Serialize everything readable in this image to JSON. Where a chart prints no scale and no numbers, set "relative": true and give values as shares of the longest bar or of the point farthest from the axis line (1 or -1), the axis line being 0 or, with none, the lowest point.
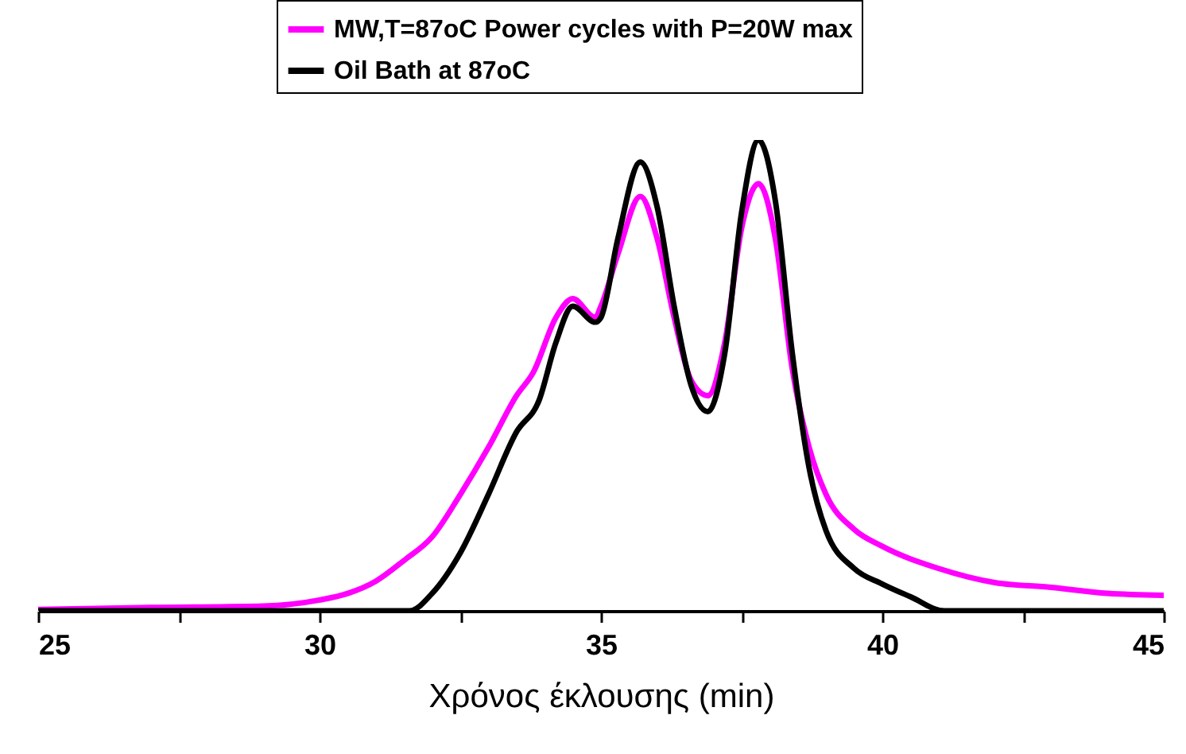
{
  "chart_data": {
    "type": "line",
    "xlabel": "Χρόνος έκλουσης (min)",
    "relative": true,
    "legend": "top right",
    "marker": "none",
    "line_style": "solid",
    "xlim": [
      25,
      45
    ],
    "xticks": [
      25,
      {
        "value": 27.5,
        "label": null
      },
      30,
      {
        "value": 32.5,
        "label": null
      },
      35,
      {
        "value": 37.5,
        "label": null
      },
      40,
      {
        "value": 42.5,
        "label": null
      },
      45
    ],
    "series": [
      {
        "name": "MW,T=87oC Power cycles with P=20W max",
        "color": "#ff00ff",
        "x": [
          25,
          27,
          29,
          30,
          30.5,
          31,
          31.5,
          32,
          32.5,
          33,
          33.5,
          33.8,
          34.2,
          34.5,
          34.9,
          35.0,
          35.3,
          35.7,
          36.0,
          36.3,
          36.6,
          36.9,
          37.2,
          37.5,
          37.8,
          38.1,
          38.4,
          38.7,
          39.0,
          39.5,
          40,
          41,
          42,
          43,
          44,
          45
        ],
        "values": [
          0.003,
          0.007,
          0.01,
          0.023,
          0.037,
          0.063,
          0.107,
          0.157,
          0.247,
          0.347,
          0.457,
          0.507,
          0.623,
          0.663,
          0.623,
          0.647,
          0.757,
          0.88,
          0.79,
          0.623,
          0.49,
          0.457,
          0.57,
          0.813,
          0.907,
          0.79,
          0.513,
          0.347,
          0.247,
          0.173,
          0.137,
          0.09,
          0.06,
          0.05,
          0.037,
          0.033
        ]
      },
      {
        "name": "Oil Bath at 87oC",
        "color": "#000000",
        "x": [
          25,
          31.6,
          32,
          32.5,
          33,
          33.5,
          33.9,
          34.2,
          34.5,
          34.9,
          35.0,
          35.3,
          35.7,
          36.0,
          36.3,
          36.6,
          36.9,
          37.2,
          37.5,
          37.8,
          38.1,
          38.4,
          38.7,
          39.0,
          39.5,
          40,
          40.5,
          41.1,
          45
        ],
        "values": [
          0,
          0,
          0.037,
          0.123,
          0.247,
          0.38,
          0.447,
          0.57,
          0.647,
          0.613,
          0.623,
          0.79,
          0.953,
          0.857,
          0.647,
          0.48,
          0.423,
          0.547,
          0.847,
          1,
          0.87,
          0.547,
          0.303,
          0.17,
          0.09,
          0.057,
          0.03,
          0,
          0
        ]
      }
    ]
  }
}
